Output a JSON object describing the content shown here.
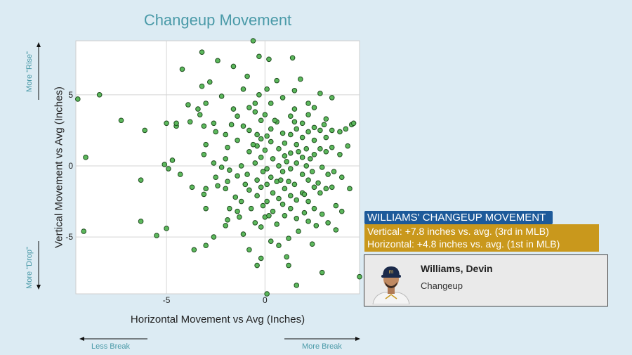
{
  "chart_data": {
    "type": "scatter",
    "title": "Changeup Movement",
    "xlabel": "Horizontal Movement vs Avg (Inches)",
    "ylabel": "Vertical Movement vs Avg (Inches)",
    "xlim": [
      -9.6,
      4.8
    ],
    "ylim": [
      -9.0,
      8.8
    ],
    "xticks": [
      -5,
      0
    ],
    "yticks": [
      -5,
      0,
      5
    ],
    "grid": true,
    "point_color": "#5cb85c",
    "point_edge": "#1f4d1f",
    "points": [
      [
        -9.5,
        4.7
      ],
      [
        -8.4,
        5.0
      ],
      [
        -9.1,
        0.6
      ],
      [
        -9.2,
        -4.6
      ],
      [
        -7.3,
        3.2
      ],
      [
        -6.1,
        2.5
      ],
      [
        -6.3,
        -1.0
      ],
      [
        -6.3,
        -3.9
      ],
      [
        -5.5,
        -4.9
      ],
      [
        -5.0,
        -4.4
      ],
      [
        -5.0,
        3.0
      ],
      [
        -5.1,
        0.1
      ],
      [
        -4.9,
        -0.2
      ],
      [
        -4.5,
        2.8
      ],
      [
        -4.7,
        0.4
      ],
      [
        -4.5,
        3.0
      ],
      [
        -4.3,
        -0.6
      ],
      [
        -4.2,
        6.8
      ],
      [
        -3.9,
        4.3
      ],
      [
        -3.8,
        3.1
      ],
      [
        -3.6,
        -5.9
      ],
      [
        -3.2,
        8.0
      ],
      [
        -3.4,
        4.0
      ],
      [
        -3.2,
        5.6
      ],
      [
        -3.0,
        4.4
      ],
      [
        -3.3,
        3.6
      ],
      [
        -3.1,
        2.8
      ],
      [
        -3.0,
        1.5
      ],
      [
        -3.1,
        0.8
      ],
      [
        -3.0,
        -1.6
      ],
      [
        -3.1,
        -2.0
      ],
      [
        -3.0,
        -3.0
      ],
      [
        -3.0,
        -5.6
      ],
      [
        -2.8,
        5.9
      ],
      [
        -2.6,
        3.0
      ],
      [
        -2.5,
        2.4
      ],
      [
        -2.6,
        0.2
      ],
      [
        -2.5,
        -0.8
      ],
      [
        -2.4,
        -1.4
      ],
      [
        -2.6,
        -5.0
      ],
      [
        -2.4,
        7.4
      ],
      [
        -2.2,
        4.9
      ],
      [
        -2.0,
        2.2
      ],
      [
        -1.9,
        1.3
      ],
      [
        -2.0,
        0.5
      ],
      [
        -1.8,
        -0.3
      ],
      [
        -1.9,
        -1.1
      ],
      [
        -2.0,
        -1.6
      ],
      [
        -1.8,
        -3.0
      ],
      [
        -1.9,
        -3.8
      ],
      [
        -2.0,
        -4.2
      ],
      [
        -1.6,
        7.0
      ],
      [
        -1.6,
        4.0
      ],
      [
        -1.4,
        3.5
      ],
      [
        -1.4,
        1.8
      ],
      [
        -1.4,
        -0.7
      ],
      [
        -1.5,
        -2.2
      ],
      [
        -1.4,
        -3.2
      ],
      [
        -1.3,
        -3.6
      ],
      [
        -1.1,
        5.4
      ],
      [
        -1.1,
        2.8
      ],
      [
        -1.2,
        0.0
      ],
      [
        -1.0,
        -1.3
      ],
      [
        -1.2,
        -2.5
      ],
      [
        -1.1,
        -4.8
      ],
      [
        -0.9,
        6.3
      ],
      [
        -0.8,
        4.1
      ],
      [
        -0.8,
        2.5
      ],
      [
        -0.8,
        1.0
      ],
      [
        -0.9,
        -0.6
      ],
      [
        -0.8,
        -1.7
      ],
      [
        -0.7,
        -3.0
      ],
      [
        -0.8,
        -5.9
      ],
      [
        -0.6,
        8.8
      ],
      [
        -0.5,
        4.4
      ],
      [
        -0.5,
        3.8
      ],
      [
        -0.4,
        2.2
      ],
      [
        -0.4,
        1.4
      ],
      [
        -0.5,
        0.2
      ],
      [
        -0.4,
        -1.0
      ],
      [
        -0.4,
        -2.1
      ],
      [
        -0.5,
        -4.0
      ],
      [
        -0.4,
        -7.0
      ],
      [
        -0.3,
        7.7
      ],
      [
        -0.3,
        5.0
      ],
      [
        -0.2,
        3.2
      ],
      [
        -0.2,
        1.9
      ],
      [
        -0.2,
        0.6
      ],
      [
        -0.1,
        -0.4
      ],
      [
        -0.2,
        -1.5
      ],
      [
        -0.1,
        -2.8
      ],
      [
        -0.2,
        -4.3
      ],
      [
        -0.2,
        -6.5
      ],
      [
        0.1,
        5.4
      ],
      [
        0.0,
        3.6
      ],
      [
        0.1,
        2.1
      ],
      [
        0.0,
        1.1
      ],
      [
        0.1,
        -0.2
      ],
      [
        0.1,
        -1.3
      ],
      [
        0.1,
        -2.5
      ],
      [
        0.0,
        -3.6
      ],
      [
        0.1,
        -9.0
      ],
      [
        0.2,
        7.5
      ],
      [
        0.3,
        4.4
      ],
      [
        0.3,
        2.6
      ],
      [
        0.3,
        1.7
      ],
      [
        0.4,
        0.5
      ],
      [
        0.3,
        -0.8
      ],
      [
        0.4,
        -1.9
      ],
      [
        0.4,
        -3.2
      ],
      [
        0.3,
        -5.3
      ],
      [
        0.6,
        6.0
      ],
      [
        0.6,
        3.1
      ],
      [
        0.7,
        1.2
      ],
      [
        0.7,
        0.0
      ],
      [
        0.6,
        -1.1
      ],
      [
        0.7,
        -2.3
      ],
      [
        0.6,
        -4.1
      ],
      [
        0.7,
        -5.6
      ],
      [
        0.9,
        4.8
      ],
      [
        0.9,
        2.3
      ],
      [
        1.0,
        1.6
      ],
      [
        1.0,
        0.7
      ],
      [
        0.9,
        -0.4
      ],
      [
        1.0,
        -1.6
      ],
      [
        0.9,
        -2.7
      ],
      [
        1.0,
        -3.5
      ],
      [
        1.1,
        -6.4
      ],
      [
        1.3,
        3.5
      ],
      [
        1.3,
        2.2
      ],
      [
        1.3,
        0.9
      ],
      [
        1.3,
        -0.2
      ],
      [
        1.2,
        -1.1
      ],
      [
        1.3,
        -2.1
      ],
      [
        1.3,
        -3.0
      ],
      [
        1.2,
        -5.1
      ],
      [
        1.2,
        -7.0
      ],
      [
        1.4,
        7.6
      ],
      [
        1.5,
        5.3
      ],
      [
        1.5,
        4.0
      ],
      [
        1.6,
        2.6
      ],
      [
        1.6,
        1.5
      ],
      [
        1.6,
        0.2
      ],
      [
        1.5,
        -1.3
      ],
      [
        1.6,
        -2.4
      ],
      [
        1.6,
        -3.7
      ],
      [
        1.7,
        -4.6
      ],
      [
        1.6,
        -8.4
      ],
      [
        1.8,
        6.1
      ],
      [
        1.9,
        3.0
      ],
      [
        1.9,
        2.0
      ],
      [
        1.9,
        0.6
      ],
      [
        1.9,
        -0.6
      ],
      [
        1.9,
        -1.9
      ],
      [
        2.0,
        -3.3
      ],
      [
        2.2,
        4.4
      ],
      [
        2.2,
        3.6
      ],
      [
        2.2,
        2.4
      ],
      [
        2.1,
        1.2
      ],
      [
        2.1,
        0.0
      ],
      [
        2.2,
        -1.0
      ],
      [
        2.2,
        -2.5
      ],
      [
        2.2,
        -3.9
      ],
      [
        2.5,
        4.1
      ],
      [
        2.5,
        2.7
      ],
      [
        2.5,
        1.8
      ],
      [
        2.5,
        0.8
      ],
      [
        2.4,
        -0.4
      ],
      [
        2.5,
        -1.5
      ],
      [
        2.5,
        -3.0
      ],
      [
        2.4,
        -5.5
      ],
      [
        2.8,
        5.1
      ],
      [
        2.8,
        2.5
      ],
      [
        2.8,
        1.2
      ],
      [
        2.9,
        -0.1
      ],
      [
        2.8,
        -1.9
      ],
      [
        2.9,
        -3.4
      ],
      [
        2.9,
        -7.5
      ],
      [
        3.1,
        3.3
      ],
      [
        3.1,
        2.0
      ],
      [
        3.1,
        1.0
      ],
      [
        3.2,
        -0.6
      ],
      [
        3.1,
        -1.6
      ],
      [
        3.2,
        -4.0
      ],
      [
        3.4,
        4.8
      ],
      [
        3.4,
        2.5
      ],
      [
        3.4,
        1.3
      ],
      [
        3.5,
        -0.4
      ],
      [
        3.4,
        -1.5
      ],
      [
        3.6,
        -2.8
      ],
      [
        3.6,
        -4.5
      ],
      [
        3.8,
        2.4
      ],
      [
        3.8,
        0.8
      ],
      [
        3.9,
        -0.8
      ],
      [
        3.9,
        -3.2
      ],
      [
        4.1,
        2.6
      ],
      [
        4.2,
        1.4
      ],
      [
        4.3,
        -1.6
      ],
      [
        4.4,
        2.9
      ],
      [
        4.5,
        3.0
      ],
      [
        4.8,
        -7.8
      ],
      [
        1.5,
        3.1
      ],
      [
        2.0,
        -2.0
      ],
      [
        0.5,
        3.2
      ],
      [
        -0.6,
        1.5
      ],
      [
        2.7,
        -1.2
      ],
      [
        1.7,
        1.0
      ],
      [
        0.8,
        -1.0
      ],
      [
        -1.7,
        2.9
      ],
      [
        3.0,
        2.9
      ],
      [
        2.3,
        0.5
      ],
      [
        -2.2,
        -0.1
      ],
      [
        0.2,
        -3.5
      ],
      [
        1.1,
        0.3
      ],
      [
        2.6,
        -4.2
      ],
      [
        -3.7,
        -1.5
      ]
    ]
  },
  "side_notes": {
    "more_rise": "More \"Rise\"",
    "more_drop": "More \"Drop\"",
    "less_break": "Less Break",
    "more_break": "More Break"
  },
  "annotation": {
    "header": "WILLIAMS' CHANGEUP MOVEMENT",
    "vertical": "Vertical: +7.8 inches vs. avg. (3rd in MLB)",
    "horizontal": "Horizontal: +4.8 inches vs. avg. (1st in MLB)",
    "header_color": "#1d5a9a",
    "box_color": "#c9981c"
  },
  "player": {
    "name": "Williams, Devin",
    "pitch": "Changeup",
    "avatar_icon": "player-headshot-icon"
  }
}
